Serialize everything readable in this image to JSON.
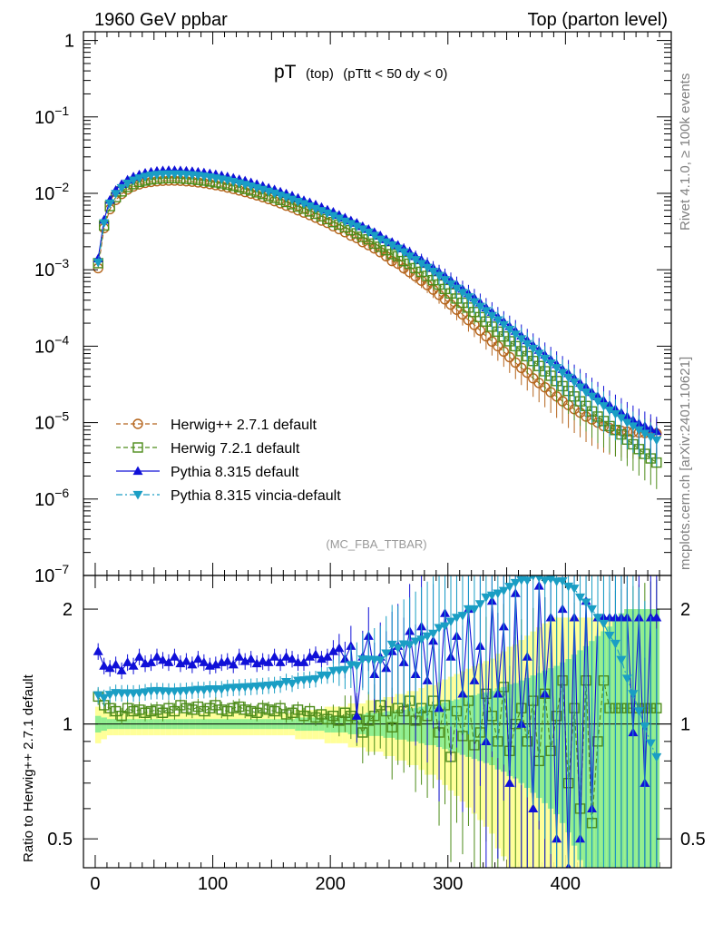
{
  "header": {
    "left": "1960 GeV ppbar",
    "right": "Top (parton level)"
  },
  "side": {
    "top": "Rivet 4.1.0, ≥ 100k events",
    "bottom": "mcplots.cern.ch [arXiv:2401.10621]"
  },
  "analysis_tag": "(MC_FBA_TTBAR)",
  "colors": {
    "herwigpp": "#b5651d",
    "herwig7": "#4d8c1a",
    "pythia": "#1010d8",
    "vincia": "#1a9ec4",
    "band_yellow": "#ffff99",
    "band_green": "#90ee90"
  },
  "chart_data": [
    {
      "id": "main",
      "type": "scatter",
      "scale": "log",
      "title": {
        "main": "pT",
        "sub1": "(top)",
        "sub2": "(pTtt < 50 dy < 0)"
      },
      "xlabel": "",
      "ylabel": "",
      "xlim": [
        -10,
        490
      ],
      "ylim": [
        1e-07,
        1.3
      ],
      "yticks": [
        {
          "v": 1,
          "label": "1",
          "exp": ""
        },
        {
          "v": 0.1,
          "label": "10",
          "exp": "−1"
        },
        {
          "v": 0.01,
          "label": "10",
          "exp": "−2"
        },
        {
          "v": 0.001,
          "label": "10",
          "exp": "−3"
        },
        {
          "v": 0.0001,
          "label": "10",
          "exp": "−4"
        },
        {
          "v": 1e-05,
          "label": "10",
          "exp": "−5"
        },
        {
          "v": 1e-06,
          "label": "10",
          "exp": "−6"
        },
        {
          "v": 1e-07,
          "label": "10",
          "exp": "−7"
        }
      ],
      "x": [
        2.5,
        7.5,
        12.5,
        17.5,
        22.5,
        27.5,
        32.5,
        37.5,
        42.5,
        47.5,
        52.5,
        57.5,
        62.5,
        67.5,
        72.5,
        77.5,
        82.5,
        87.5,
        92.5,
        97.5,
        102.5,
        107.5,
        112.5,
        117.5,
        122.5,
        127.5,
        132.5,
        137.5,
        142.5,
        147.5,
        152.5,
        157.5,
        162.5,
        167.5,
        172.5,
        177.5,
        182.5,
        187.5,
        192.5,
        197.5,
        202.5,
        207.5,
        212.5,
        217.5,
        222.5,
        227.5,
        232.5,
        237.5,
        242.5,
        247.5,
        252.5,
        257.5,
        262.5,
        267.5,
        272.5,
        277.5,
        282.5,
        287.5,
        292.5,
        297.5,
        302.5,
        307.5,
        312.5,
        317.5,
        322.5,
        327.5,
        332.5,
        337.5,
        342.5,
        347.5,
        352.5,
        357.5,
        362.5,
        367.5,
        372.5,
        377.5,
        382.5,
        387.5,
        392.5,
        397.5,
        402.5,
        407.5,
        412.5,
        417.5,
        422.5,
        427.5,
        432.5,
        437.5,
        442.5,
        447.5,
        452.5,
        457.5,
        462.5,
        467.5,
        472.5,
        477.5
      ],
      "series": [
        {
          "name": "Herwig++ 2.7.1 default",
          "marker": "circle-open",
          "line": "dashed",
          "color": "#b5651d",
          "values": [
            0.00105,
            0.0035,
            0.0062,
            0.0082,
            0.0098,
            0.0112,
            0.0123,
            0.0131,
            0.0137,
            0.0141,
            0.0144,
            0.0146,
            0.0147,
            0.0147,
            0.0146,
            0.0144,
            0.0142,
            0.0139,
            0.0136,
            0.0132,
            0.0128,
            0.0124,
            0.0119,
            0.0114,
            0.0109,
            0.0104,
            0.0099,
            0.0094,
            0.0089,
            0.0084,
            0.0079,
            0.0074,
            0.0069,
            0.0065,
            0.006,
            0.0056,
            0.0052,
            0.0048,
            0.0044,
            0.0041,
            0.0037,
            0.0034,
            0.0031,
            0.0028,
            0.0026,
            0.0023,
            0.0021,
            0.0019,
            0.0017,
            0.0015,
            0.0013,
            0.0012,
            0.00105,
            0.00093,
            0.00082,
            0.00072,
            0.00063,
            0.00055,
            0.00047,
            0.00041,
            0.00035,
            0.0003,
            0.00026,
            0.00022,
            0.00019,
            0.00016,
            0.000135,
            0.000115,
            0.0001,
            8.5e-05,
            7.2e-05,
            6.1e-05,
            5.2e-05,
            4.5e-05,
            3.8e-05,
            3.3e-05,
            2.9e-05,
            2.5e-05,
            2.2e-05,
            1.9e-05,
            1.7e-05,
            1.5e-05,
            1.35e-05,
            1.2e-05,
            1.1e-05,
            1e-05,
            9e-06,
            8.5e-06,
            8e-06,
            7.8e-06,
            7.6e-06,
            7.5e-06,
            7.4e-06,
            7.3e-06,
            7.3e-06,
            7.2e-06
          ]
        },
        {
          "name": "Herwig 7.2.1 default",
          "marker": "square-open",
          "line": "dashed",
          "color": "#4d8c1a",
          "values": [
            0.00122,
            0.0038,
            0.0068,
            0.0089,
            0.0106,
            0.0121,
            0.0132,
            0.0141,
            0.0147,
            0.0152,
            0.0155,
            0.0157,
            0.0158,
            0.0158,
            0.0157,
            0.0155,
            0.0153,
            0.015,
            0.0147,
            0.0143,
            0.0139,
            0.0135,
            0.013,
            0.0125,
            0.012,
            0.0114,
            0.0109,
            0.0103,
            0.0098,
            0.0092,
            0.0087,
            0.0082,
            0.0077,
            0.0072,
            0.0067,
            0.0063,
            0.0058,
            0.0054,
            0.005,
            0.0046,
            0.0042,
            0.0039,
            0.0036,
            0.0033,
            0.003,
            0.0027,
            0.0025,
            0.0022,
            0.002,
            0.0018,
            0.0016,
            0.0015,
            0.0013,
            0.0012,
            0.00105,
            0.00094,
            0.00083,
            0.00073,
            0.00064,
            0.00056,
            0.00049,
            0.00042,
            0.00037,
            0.00032,
            0.00028,
            0.00024,
            0.00021,
            0.00018,
            0.000155,
            0.000134,
            0.000116,
            0.0001,
            8.6e-05,
            7.4e-05,
            6.4e-05,
            5.5e-05,
            4.7e-05,
            4.1e-05,
            3.5e-05,
            3e-05,
            2.6e-05,
            2.2e-05,
            1.9e-05,
            1.65e-05,
            1.4e-05,
            1.2e-05,
            1.05e-05,
            9e-06,
            8e-06,
            7e-06,
            6e-06,
            5.2e-06,
            4.5e-06,
            3.9e-06,
            3.4e-06,
            3e-06
          ]
        },
        {
          "name": "Pythia 8.315 default",
          "marker": "triangle-up",
          "line": "solid",
          "color": "#1010d8",
          "values": [
            0.0014,
            0.0045,
            0.0082,
            0.011,
            0.0132,
            0.015,
            0.0165,
            0.0176,
            0.0185,
            0.0191,
            0.0196,
            0.0199,
            0.02,
            0.02,
            0.0199,
            0.0197,
            0.0194,
            0.0191,
            0.0187,
            0.0182,
            0.0177,
            0.0171,
            0.0165,
            0.0159,
            0.0152,
            0.0146,
            0.0139,
            0.0132,
            0.0125,
            0.0118,
            0.0112,
            0.0105,
            0.0099,
            0.0093,
            0.0087,
            0.0081,
            0.0076,
            0.0071,
            0.0066,
            0.0061,
            0.0057,
            0.0052,
            0.0048,
            0.0044,
            0.0041,
            0.0037,
            0.0034,
            0.0031,
            0.0028,
            0.0025,
            0.0023,
            0.0021,
            0.0019,
            0.0017,
            0.0015,
            0.00135,
            0.0012,
            0.00106,
            0.00094,
            0.00083,
            0.00073,
            0.00064,
            0.00056,
            0.00049,
            0.00043,
            0.00037,
            0.00032,
            0.00028,
            0.00024,
            0.00021,
            0.000182,
            0.000158,
            0.000137,
            0.000119,
            0.000103,
            8.9e-05,
            7.7e-05,
            6.7e-05,
            5.8e-05,
            5e-05,
            4.4e-05,
            3.8e-05,
            3.3e-05,
            2.9e-05,
            2.5e-05,
            2.2e-05,
            1.95e-05,
            1.7e-05,
            1.5e-05,
            1.35e-05,
            1.2e-05,
            1.08e-05,
            9.8e-06,
            9e-06,
            8.3e-06,
            7.7e-06
          ]
        },
        {
          "name": "Pythia 8.315 vincia-default",
          "marker": "triangle-down",
          "line": "dashdot",
          "color": "#1a9ec4",
          "values": [
            0.00125,
            0.0041,
            0.0074,
            0.0099,
            0.0118,
            0.0135,
            0.0148,
            0.0158,
            0.0166,
            0.0172,
            0.0176,
            0.0178,
            0.0179,
            0.0179,
            0.0178,
            0.0176,
            0.0174,
            0.0171,
            0.0167,
            0.0163,
            0.0158,
            0.0153,
            0.0148,
            0.0142,
            0.0136,
            0.013,
            0.0124,
            0.0118,
            0.0112,
            0.0106,
            0.01,
            0.0094,
            0.0089,
            0.0083,
            0.0078,
            0.0073,
            0.0068,
            0.0063,
            0.0059,
            0.0055,
            0.0051,
            0.0047,
            0.0043,
            0.004,
            0.0037,
            0.0034,
            0.0031,
            0.0028,
            0.0025,
            0.0023,
            0.0021,
            0.0019,
            0.0017,
            0.0015,
            0.00135,
            0.0012,
            0.00107,
            0.00095,
            0.00084,
            0.00074,
            0.00065,
            0.00057,
            0.0005,
            0.00044,
            0.00038,
            0.00033,
            0.00029,
            0.00025,
            0.00022,
            0.00019,
            0.000165,
            0.000143,
            0.000124,
            0.000107,
            9.3e-05,
            8e-05,
            6.9e-05,
            6e-05,
            5.2e-05,
            4.5e-05,
            3.9e-05,
            3.4e-05,
            2.9e-05,
            2.5e-05,
            2.2e-05,
            1.9e-05,
            1.65e-05,
            1.45e-05,
            1.3e-05,
            1.15e-05,
            1e-05,
            9e-06,
            8e-06,
            7.2e-06,
            6.5e-06,
            5.9e-06
          ]
        }
      ]
    },
    {
      "id": "ratio",
      "type": "scatter",
      "scale": "log",
      "ylabel": "Ratio to Herwig++ 2.7.1 default",
      "xlim": [
        -10,
        490
      ],
      "ylim": [
        0.42,
        2.45
      ],
      "xticks": [
        0,
        100,
        200,
        300,
        400
      ],
      "yticks_left": [
        {
          "v": 2,
          "label": "2"
        },
        {
          "v": 1,
          "label": "1"
        },
        {
          "v": 0.5,
          "label": "0.5"
        }
      ],
      "yticks_right": [
        {
          "v": 2,
          "label": "2"
        },
        {
          "v": 1,
          "label": "1"
        },
        {
          "v": 0.5,
          "label": "0.5"
        }
      ],
      "reference": 1,
      "band_green_halfwidth": [
        0.05,
        0.04,
        0.03,
        0.03,
        0.03,
        0.03,
        0.03,
        0.03,
        0.03,
        0.03,
        0.03,
        0.03,
        0.03,
        0.03,
        0.03,
        0.03,
        0.03,
        0.03,
        0.03,
        0.03,
        0.03,
        0.03,
        0.03,
        0.03,
        0.03,
        0.03,
        0.03,
        0.03,
        0.03,
        0.03,
        0.03,
        0.03,
        0.03,
        0.03,
        0.04,
        0.04,
        0.04,
        0.04,
        0.04,
        0.05,
        0.05,
        0.05,
        0.05,
        0.06,
        0.06,
        0.06,
        0.07,
        0.07,
        0.07,
        0.08,
        0.08,
        0.09,
        0.09,
        0.1,
        0.1,
        0.11,
        0.12,
        0.12,
        0.13,
        0.14,
        0.15,
        0.16,
        0.17,
        0.18,
        0.19,
        0.2,
        0.21,
        0.22,
        0.24,
        0.25,
        0.27,
        0.28,
        0.3,
        0.32,
        0.34,
        0.36,
        0.38,
        0.4,
        0.42,
        0.45,
        0.48,
        0.52,
        0.56,
        0.6,
        0.65,
        0.7,
        0.75,
        0.8,
        0.9,
        0.95,
        1.0,
        1.0,
        1.0,
        1.0,
        1.0,
        1.0
      ],
      "series_ratio": {
        "Herwig 7.2.1 default": [
          1.18,
          1.12,
          1.1,
          1.08,
          1.05,
          1.1,
          1.08,
          1.09,
          1.07,
          1.08,
          1.09,
          1.07,
          1.1,
          1.08,
          1.12,
          1.1,
          1.09,
          1.11,
          1.08,
          1.1,
          1.12,
          1.09,
          1.08,
          1.1,
          1.11,
          1.09,
          1.08,
          1.07,
          1.1,
          1.09,
          1.08,
          1.1,
          1.06,
          1.07,
          1.09,
          1.05,
          1.08,
          1.04,
          1.06,
          1.03,
          1.05,
          1.02,
          1.07,
          1.05,
          1.03,
          0.95,
          1.02,
          1.05,
          1.12,
          1.08,
          0.98,
          1.1,
          1.08,
          1.15,
          1.02,
          1.1,
          1.05,
          1.15,
          0.95,
          1.12,
          0.82,
          1.08,
          0.93,
          1.15,
          0.88,
          0.95,
          1.2,
          1.05,
          0.9,
          1.25,
          0.85,
          1.0,
          1.1,
          0.9,
          1.15,
          0.8,
          1.2,
          0.85,
          1.05,
          1.3,
          0.7,
          1.1,
          0.6,
          1.3,
          0.55,
          0.9,
          1.3,
          1.1,
          1.1,
          1.1,
          1.1,
          1.1,
          1.1,
          1.1,
          1.1,
          1.1
        ],
        "Pythia 8.315 default": [
          1.55,
          1.42,
          1.4,
          1.43,
          1.38,
          1.45,
          1.42,
          1.5,
          1.44,
          1.45,
          1.5,
          1.47,
          1.45,
          1.5,
          1.44,
          1.46,
          1.43,
          1.48,
          1.45,
          1.42,
          1.43,
          1.45,
          1.46,
          1.43,
          1.5,
          1.46,
          1.48,
          1.44,
          1.46,
          1.45,
          1.5,
          1.45,
          1.5,
          1.48,
          1.45,
          1.45,
          1.5,
          1.52,
          1.48,
          1.5,
          1.55,
          1.58,
          1.48,
          1.6,
          1.05,
          1.5,
          1.7,
          1.35,
          1.5,
          1.4,
          1.55,
          1.6,
          1.45,
          1.75,
          1.35,
          1.8,
          1.3,
          1.65,
          1.1,
          1.95,
          1.5,
          1.7,
          1.2,
          2.0,
          1.3,
          1.6,
          0.9,
          2.1,
          1.2,
          1.8,
          0.7,
          2.2,
          1.0,
          1.5,
          0.6,
          2.3,
          1.2,
          1.9,
          0.5,
          2.0,
          0.4,
          1.9,
          0.5,
          2.1,
          0.6,
          1.9,
          1.9,
          1.9,
          1.9,
          1.9,
          1.9,
          0.95,
          1.9,
          0.7,
          1.9,
          1.9
        ]
      }
    }
  ]
}
